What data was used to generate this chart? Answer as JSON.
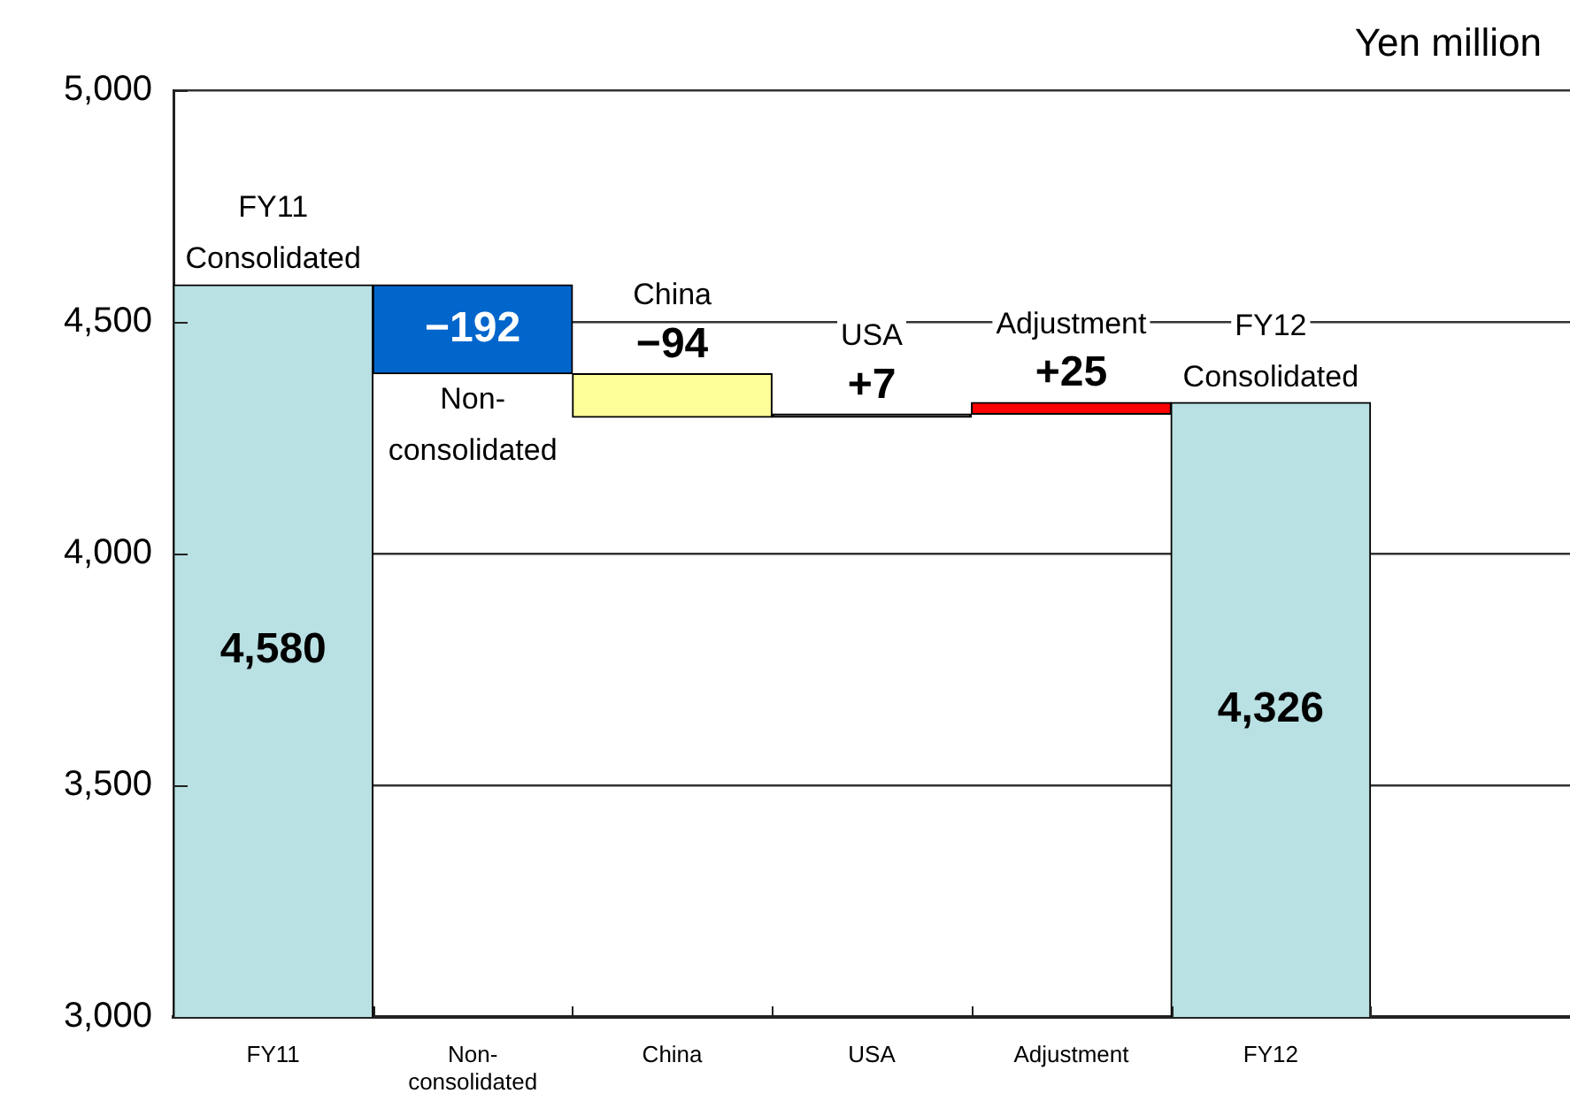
{
  "chart_data": {
    "type": "bar",
    "ylabel": "Yen million",
    "categories": [
      "FY11",
      "Non-\nconsolidated",
      "China",
      "USA",
      "Adjustment",
      "FY12",
      null
    ],
    "values": [
      4580,
      -192,
      -94,
      7,
      25,
      4326,
      null
    ],
    "base": [
      null,
      4580,
      4388,
      4294,
      4301,
      null,
      null
    ],
    "colors": [
      "#b9e0e3",
      "#0066cc",
      "#ffff99",
      "#000000",
      "#ff0000",
      "#b9e0e3",
      null
    ],
    "value_labels": [
      "4,580",
      "−192",
      "−94",
      "+7",
      "+25",
      "4,326",
      null
    ],
    "ylim": [
      3000,
      5000
    ],
    "yticks": [
      {
        "value": 3000,
        "label": "3,000"
      },
      {
        "value": 3500,
        "label": "3,500"
      },
      {
        "value": 4000,
        "label": "4,000"
      },
      {
        "value": 4500,
        "label": "4,500"
      },
      {
        "value": 5000,
        "label": "5,000"
      }
    ],
    "grid": "y",
    "annotations": [
      {
        "text": "FY11\nConsolidated",
        "x": "FY11",
        "y": 4580
      },
      {
        "text": "Non-\nconsolidated",
        "x": "Non-\nconsolidated",
        "y": 4388
      },
      {
        "text": "China",
        "x": "China",
        "y": 4388
      },
      {
        "text": "USA",
        "x": "USA",
        "y": 4301
      },
      {
        "text": "Adjustment",
        "x": "Adjustment",
        "y": 4326
      },
      {
        "text": "FY12\nConsolidated",
        "x": "FY12",
        "y": 4326
      }
    ]
  }
}
